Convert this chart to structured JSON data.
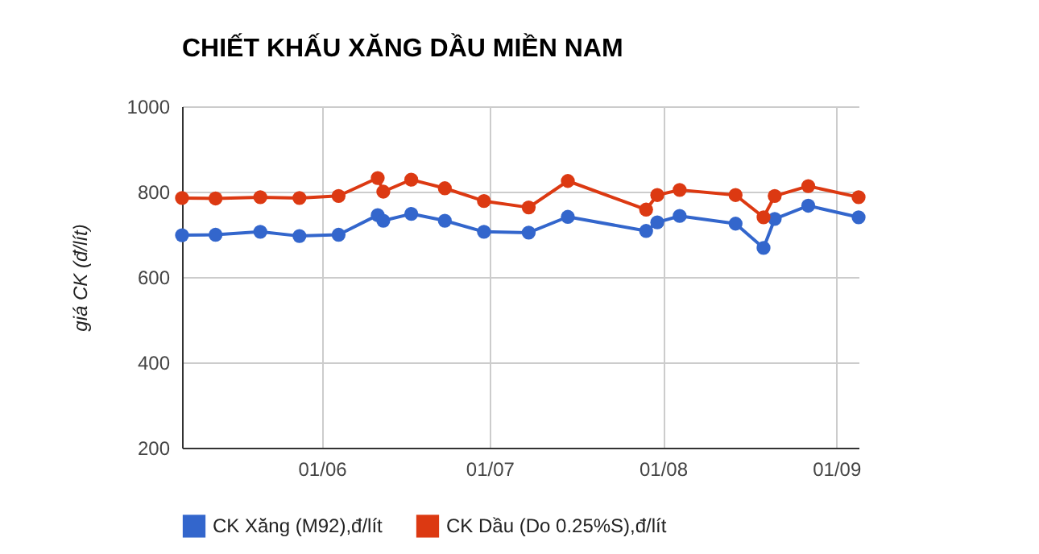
{
  "chart_data": {
    "type": "line",
    "title": "CHIẾT KHẤU XĂNG DẦU MIỀN NAM",
    "ylabel": "giá CK (đ/lít)",
    "x": [
      "--05-07",
      "--05-13",
      "--05-21",
      "--05-28",
      "--06-04",
      "--06-11",
      "--06-12",
      "--06-17",
      "--06-23",
      "--06-30",
      "--07-08",
      "--07-15",
      "--07-29",
      "--07-31",
      "--08-04",
      "--08-14",
      "--08-19",
      "--08-21",
      "--08-27",
      "--09-05"
    ],
    "series": [
      {
        "name": "CK Xăng (M92),đ/lít",
        "color": "#3366cc",
        "values": [
          698,
          699,
          706,
          696,
          699,
          745,
          732,
          748,
          732,
          706,
          704,
          741,
          708,
          728,
          743,
          725,
          668,
          736,
          767,
          740
        ]
      },
      {
        "name": "CK Dầu (Do 0.25%S),đ/lít",
        "color": "#dc3912",
        "values": [
          785,
          784,
          787,
          785,
          790,
          832,
          800,
          828,
          808,
          778,
          763,
          825,
          758,
          792,
          804,
          792,
          740,
          790,
          813,
          787
        ]
      }
    ],
    "xlim": [
      "--05-07",
      "--09-05"
    ],
    "xticks": [
      {
        "value": "--06-01",
        "label": "01/06"
      },
      {
        "value": "--07-01",
        "label": "01/07"
      },
      {
        "value": "--08-01",
        "label": "01/08"
      },
      {
        "value": "--09-01",
        "label": "01/09"
      }
    ],
    "ylim": [
      200,
      1000
    ],
    "yticks": [
      200,
      400,
      600,
      800,
      1000
    ],
    "grid": true,
    "legend": "bottom",
    "marker": "circle",
    "line_style": "solid"
  }
}
